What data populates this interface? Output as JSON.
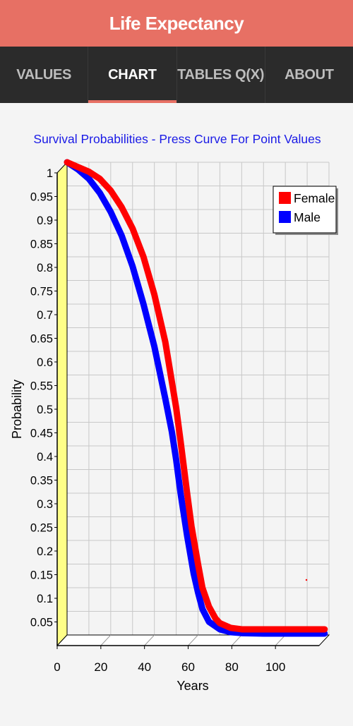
{
  "app": {
    "title": "Life Expectancy"
  },
  "tabs": [
    {
      "label": "VALUES",
      "active": false
    },
    {
      "label": "CHART",
      "active": true
    },
    {
      "label": "TABLES Q(X)",
      "active": false
    },
    {
      "label": "ABOUT",
      "active": false
    }
  ],
  "colors": {
    "accent": "#e77064",
    "female": "#ff0000",
    "male": "#0000ff",
    "yaxis_wall": "#ffff88"
  },
  "chart_data": {
    "type": "line",
    "title": "Survival Probabilities - Press Curve For Point Values",
    "xlabel": "Years",
    "ylabel": "Probability",
    "xlim": [
      0,
      120
    ],
    "ylim": [
      0,
      1
    ],
    "xticks": [
      "0",
      "20",
      "40",
      "60",
      "80",
      "100"
    ],
    "yticks": [
      "0.05",
      "0.1",
      "0.15",
      "0.2",
      "0.25",
      "0.3",
      "0.35",
      "0.4",
      "0.45",
      "0.5",
      "0.55",
      "0.6",
      "0.65",
      "0.7",
      "0.75",
      "0.8",
      "0.85",
      "0.9",
      "0.95",
      "1"
    ],
    "grid": true,
    "legend": "top-right",
    "series": [
      {
        "name": "Female",
        "x": [
          0,
          5,
          10,
          15,
          20,
          25,
          30,
          35,
          40,
          45,
          50,
          52,
          55,
          57,
          60,
          62,
          65,
          68,
          70,
          75,
          80,
          90,
          100,
          110,
          118
        ],
        "y": [
          1.0,
          0.99,
          0.98,
          0.965,
          0.94,
          0.905,
          0.86,
          0.8,
          0.72,
          0.62,
          0.48,
          0.41,
          0.3,
          0.23,
          0.15,
          0.1,
          0.06,
          0.035,
          0.025,
          0.015,
          0.012,
          0.012,
          0.012,
          0.012,
          0.012
        ]
      },
      {
        "name": "Male",
        "x": [
          0,
          5,
          10,
          15,
          20,
          25,
          30,
          35,
          40,
          45,
          48,
          50,
          52,
          55,
          58,
          60,
          62,
          65,
          70,
          75,
          80,
          90,
          100,
          110,
          118
        ],
        "y": [
          1.0,
          0.985,
          0.965,
          0.935,
          0.895,
          0.845,
          0.78,
          0.7,
          0.61,
          0.5,
          0.43,
          0.37,
          0.3,
          0.21,
          0.13,
          0.09,
          0.055,
          0.028,
          0.012,
          0.006,
          0.004,
          0.003,
          0.003,
          0.003,
          0.003
        ]
      }
    ]
  }
}
